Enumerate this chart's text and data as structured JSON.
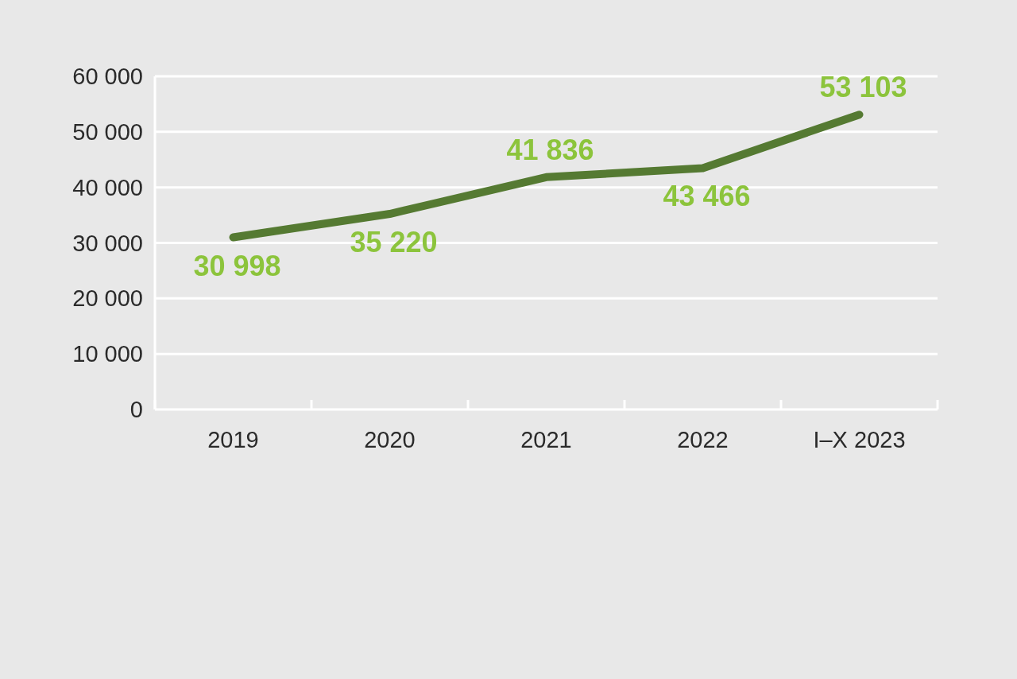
{
  "chart_data": {
    "type": "line",
    "categories": [
      "2019",
      "2020",
      "2021",
      "2022",
      "I–X 2023"
    ],
    "series": [
      {
        "color": "#557a32",
        "values": [
          30998,
          35220,
          41836,
          43466,
          53103
        ]
      }
    ],
    "ylim": [
      0,
      60000
    ],
    "yticks": [
      0,
      {
        "value": 10000,
        "label": "10 000"
      },
      {
        "value": 20000,
        "label": "20 000"
      },
      {
        "value": 30000,
        "label": "30 000"
      },
      {
        "value": 40000,
        "label": "40 000"
      },
      {
        "value": 50000,
        "label": "50 000"
      },
      {
        "value": 60000,
        "label": "60 000"
      }
    ],
    "grid": "y",
    "data_labels": true,
    "marker": "none",
    "line_style": "solid"
  }
}
